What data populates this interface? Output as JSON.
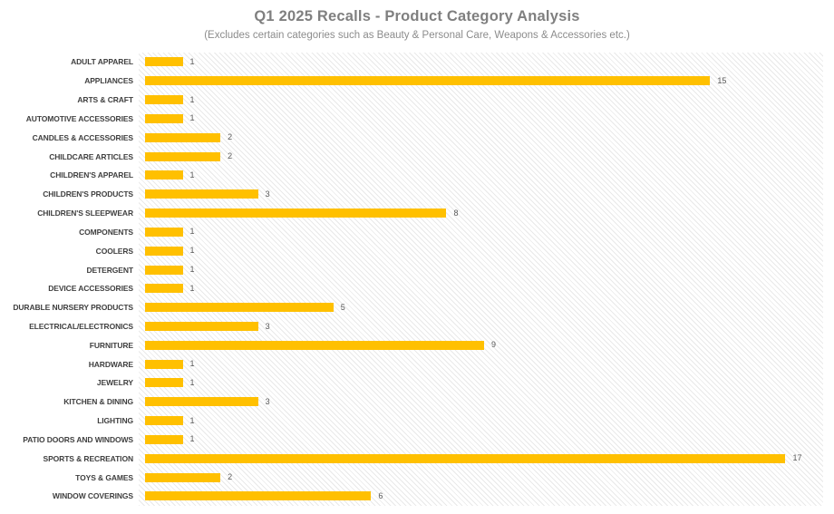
{
  "header": {
    "title": "Q1 2025 Recalls - Product Category Analysis",
    "subtitle": "(Excludes certain categories such as Beauty & Personal Care, Weapons & Accessories etc.)"
  },
  "chart_data": {
    "type": "bar",
    "orientation": "horizontal",
    "title": "Q1 2025 Recalls - Product Category Analysis",
    "subtitle": "(Excludes certain categories such as Beauty & Personal Care, Weapons & Accessories etc.)",
    "categories": [
      "ADULT APPAREL",
      "APPLIANCES",
      "ARTS & CRAFT",
      "AUTOMOTIVE ACCESSORIES",
      "CANDLES & ACCESSORIES",
      "CHILDCARE ARTICLES",
      "CHILDREN'S APPAREL",
      "CHILDREN'S PRODUCTS",
      "CHILDREN'S SLEEPWEAR",
      "COMPONENTS",
      "COOLERS",
      "DETERGENT",
      "DEVICE ACCESSORIES",
      "DURABLE NURSERY PRODUCTS",
      "ELECTRICAL/ELECTRONICS",
      "FURNITURE",
      "HARDWARE",
      "JEWELRY",
      "KITCHEN & DINING",
      "LIGHTING",
      "PATIO DOORS AND WINDOWS",
      "SPORTS & RECREATION",
      "TOYS & GAMES",
      "WINDOW COVERINGS"
    ],
    "values": [
      1,
      15,
      1,
      1,
      2,
      2,
      1,
      3,
      8,
      1,
      1,
      1,
      1,
      5,
      3,
      9,
      1,
      1,
      3,
      1,
      1,
      17,
      2,
      6
    ],
    "xlabel": "",
    "ylabel": "",
    "xlim": [
      0,
      18
    ],
    "grid": false,
    "legend": null,
    "value_labels": true,
    "plot_background": "light-diagonal-hatch"
  },
  "colors": {
    "bar": "#FFC000",
    "title_text": "#7f7f7f",
    "subtitle_text": "#8c8c8c",
    "category_label": "#3f3f3f",
    "value_label": "#595959",
    "hatch_line": "#e9e9e9",
    "background": "#ffffff"
  }
}
